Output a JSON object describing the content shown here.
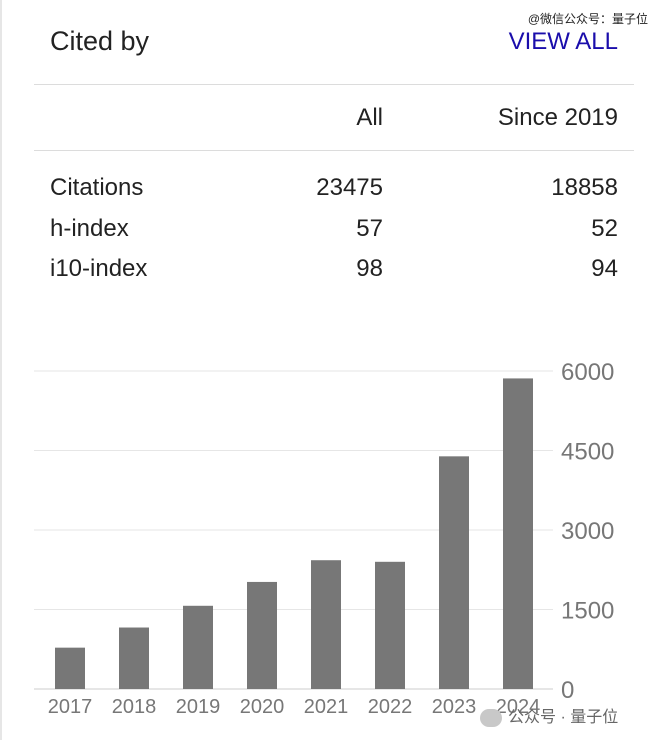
{
  "header": {
    "title": "Cited by",
    "view_all": "VIEW ALL"
  },
  "watermark": {
    "top": "@微信公众号：量子位",
    "bottom": "公众号 · 量子位"
  },
  "table": {
    "columns": [
      "All",
      "Since 2019"
    ],
    "rows": [
      {
        "label": "Citations",
        "all": "23475",
        "since": "18858"
      },
      {
        "label": "h-index",
        "all": "57",
        "since": "52"
      },
      {
        "label": "i10-index",
        "all": "98",
        "since": "94"
      }
    ]
  },
  "chart_data": {
    "type": "bar",
    "categories": [
      "2017",
      "2018",
      "2019",
      "2020",
      "2021",
      "2022",
      "2023",
      "2024"
    ],
    "values": [
      780,
      1160,
      1570,
      2020,
      2430,
      2400,
      4390,
      5860
    ],
    "ylim": [
      0,
      6000
    ],
    "yticks": [
      0,
      1500,
      3000,
      4500,
      6000
    ],
    "grid": true,
    "bar_color": "#777777",
    "y_axis_side": "right"
  }
}
